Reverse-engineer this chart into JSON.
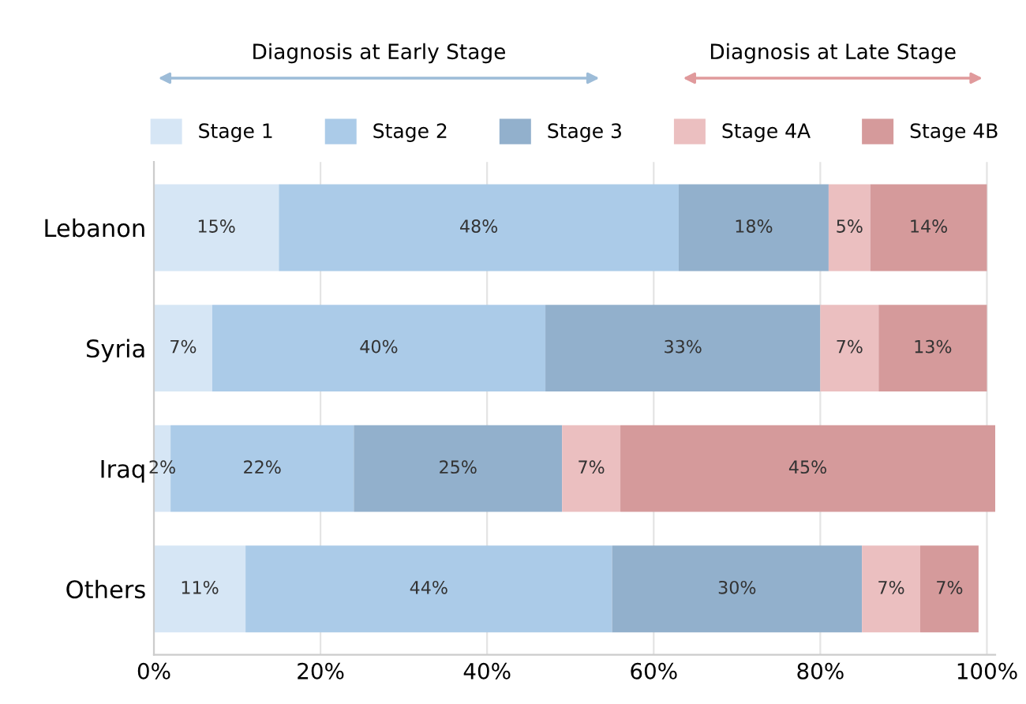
{
  "chart_data": {
    "type": "bar",
    "orientation": "horizontal",
    "stacked": true,
    "categories": [
      "Lebanon",
      "Syria",
      "Iraq",
      "Others"
    ],
    "series": [
      {
        "name": "Stage 1",
        "color": "#d6e6f5",
        "values": [
          15,
          7,
          2,
          11
        ],
        "value_labels": [
          "15%",
          "7%",
          "2%",
          "11%"
        ]
      },
      {
        "name": "Stage 2",
        "color": "#abcbe8",
        "values": [
          48,
          40,
          22,
          44
        ],
        "value_labels": [
          "48%",
          "40%",
          "22%",
          "44%"
        ]
      },
      {
        "name": "Stage 3",
        "color": "#92b0cc",
        "values": [
          18,
          33,
          25,
          30
        ],
        "value_labels": [
          "18%",
          "33%",
          "25%",
          "30%"
        ]
      },
      {
        "name": "Stage 4A",
        "color": "#ebbfc0",
        "values": [
          5,
          7,
          7,
          7
        ],
        "value_labels": [
          "5%",
          "7%",
          "7%",
          "7%"
        ]
      },
      {
        "name": "Stage 4B",
        "color": "#d59a9b",
        "values": [
          14,
          13,
          45,
          7
        ],
        "value_labels": [
          "14%",
          "13%",
          "45%",
          "7%"
        ]
      }
    ],
    "xlim": [
      0,
      101
    ],
    "xticks": [
      {
        "value": 0,
        "label": "0%"
      },
      {
        "value": 20,
        "label": "20%"
      },
      {
        "value": 40,
        "label": "40%"
      },
      {
        "value": 60,
        "label": "60%"
      },
      {
        "value": 80,
        "label": "80%"
      },
      {
        "value": 100,
        "label": "100%"
      }
    ],
    "grid": "x",
    "legend": "top",
    "annotations": [
      "Diagnosis at Early Stage",
      "Diagnosis at Late Stage"
    ]
  }
}
